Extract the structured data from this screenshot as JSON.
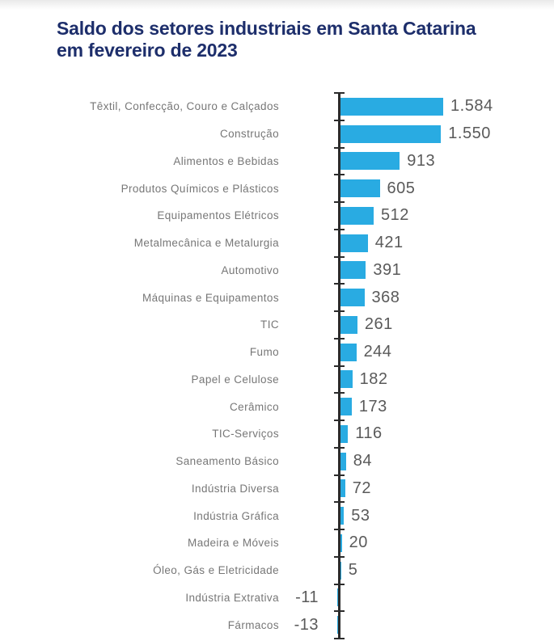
{
  "page": {
    "title": "Saldo dos setores industriais em Santa Catarina em fevereiro de 2023"
  },
  "chart_data": {
    "type": "bar",
    "orientation": "horizontal",
    "title": "Saldo dos setores industriais em Santa Catarina em fevereiro de 2023",
    "categories": [
      "Têxtil, Confecção, Couro e Calçados",
      "Construção",
      "Alimentos e Bebidas",
      "Produtos Químicos e Plásticos",
      "Equipamentos Elétricos",
      "Metalmecânica e Metalurgia",
      "Automotivo",
      "Máquinas e Equipamentos",
      "TIC",
      "Fumo",
      "Papel e Celulose",
      "Cerâmico",
      "TIC-Serviços",
      "Saneamento Básico",
      "Indústria Diversa",
      "Indústria Gráfica",
      "Madeira e Móveis",
      "Óleo, Gás e Eletricidade",
      "Indústria Extrativa",
      "Fármacos"
    ],
    "values": [
      1584,
      1550,
      913,
      605,
      512,
      421,
      391,
      368,
      261,
      244,
      182,
      173,
      116,
      84,
      72,
      53,
      20,
      5,
      -11,
      -13
    ],
    "value_labels": [
      "1.584",
      "1.550",
      "913",
      "605",
      "512",
      "421",
      "391",
      "368",
      "261",
      "244",
      "182",
      "173",
      "116",
      "84",
      "72",
      "53",
      "20",
      "5",
      "-11",
      "-13"
    ],
    "xlabel": "",
    "ylabel": "",
    "xlim": [
      -13,
      1584
    ],
    "grid": false,
    "legend": false,
    "value_labels_position": "outside-end",
    "bar_color": "#29abe2",
    "axis_color": "#2b2b2b",
    "title_color": "#1d2e6b",
    "category_label_color": "#777777",
    "value_label_color": "#5a5a5a"
  }
}
